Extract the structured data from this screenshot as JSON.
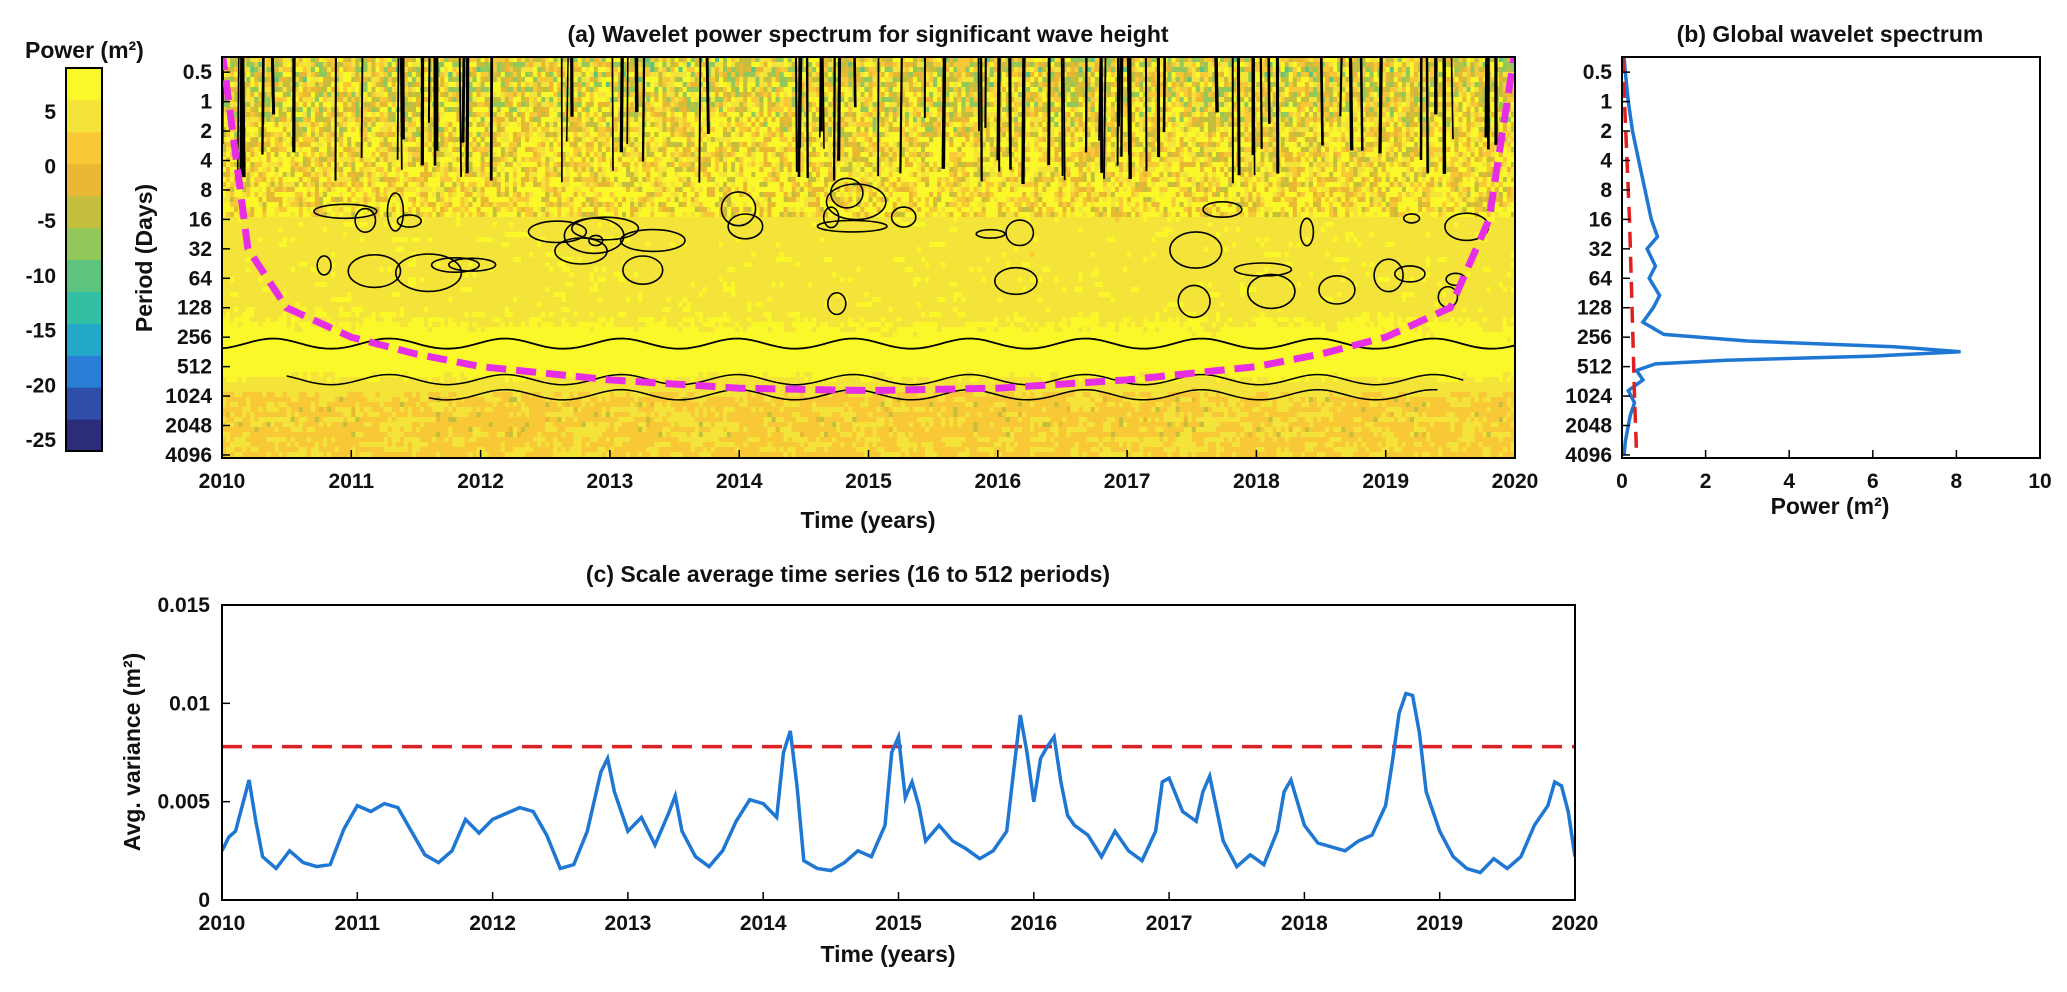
{
  "chart_data": [
    {
      "type": "heatmap",
      "panel": "a",
      "title": "(a) Wavelet power spectrum for significant wave height",
      "xlabel": "Time (years)",
      "ylabel": "Period (Days)",
      "x_ticks": [
        "2010",
        "2011",
        "2012",
        "2013",
        "2014",
        "2015",
        "2016",
        "2017",
        "2018",
        "2019",
        "2020"
      ],
      "xlim": [
        2010,
        2020
      ],
      "y_ticks": [
        "0.5",
        "1",
        "2",
        "4",
        "8",
        "16",
        "32",
        "64",
        "128",
        "256",
        "512",
        "1024",
        "2048",
        "4096"
      ],
      "y_scale": "log2",
      "y_direction": "increasing downward",
      "colorbar": {
        "title": "Power (m²)",
        "ticks": [
          "5",
          "0",
          "-5",
          "-10",
          "-15",
          "-20",
          "-25"
        ],
        "range": [
          -26,
          9
        ],
        "colors": [
          "#2c2c7a",
          "#2f4fa8",
          "#2a7ed6",
          "#22a8c8",
          "#33bfa3",
          "#5cc47e",
          "#92c85a",
          "#c3bf3c",
          "#e8b834",
          "#f9c837",
          "#f4e43a",
          "#fbf82a"
        ]
      },
      "power_by_period": [
        {
          "period": 0.5,
          "power": 0
        },
        {
          "period": 1,
          "power": 1
        },
        {
          "period": 2,
          "power": 3
        },
        {
          "period": 4,
          "power": 4
        },
        {
          "period": 8,
          "power": 5
        },
        {
          "period": 16,
          "power": 5
        },
        {
          "period": 32,
          "power": 5
        },
        {
          "period": 64,
          "power": 5
        },
        {
          "period": 128,
          "power": 5
        },
        {
          "period": 256,
          "power": 7
        },
        {
          "period": 512,
          "power": 8
        },
        {
          "period": 1024,
          "power": 3
        },
        {
          "period": 2048,
          "power": 3
        },
        {
          "period": 4096,
          "power": 3
        }
      ],
      "cone_of_influence": {
        "color": "#e62ee6",
        "x": [
          2010,
          2010.2,
          2010.5,
          2011,
          2011.5,
          2012,
          2013,
          2014,
          2015,
          2016,
          2017,
          2018,
          2018.5,
          2019,
          2019.5,
          2019.8,
          2020
        ],
        "period": [
          0.3,
          32,
          128,
          256,
          380,
          512,
          700,
          850,
          900,
          850,
          700,
          512,
          380,
          256,
          128,
          16,
          0.3
        ]
      },
      "significance_contour_color": "#000000"
    },
    {
      "type": "line",
      "panel": "b",
      "title": "(b) Global wavelet spectrum",
      "xlabel": "Power (m²)",
      "xlim": [
        0,
        10
      ],
      "x_ticks": [
        "0",
        "2",
        "4",
        "6",
        "8",
        "10"
      ],
      "y_ticks": [
        "0.5",
        "1",
        "2",
        "4",
        "8",
        "16",
        "32",
        "64",
        "128",
        "256",
        "512",
        "1024",
        "2048",
        "4096"
      ],
      "y_scale": "log2",
      "series": [
        {
          "color": "#1f77d4",
          "style": "solid",
          "period": [
            0.35,
            0.5,
            1,
            2,
            4,
            8,
            16,
            24,
            32,
            48,
            64,
            96,
            128,
            180,
            240,
            280,
            320,
            360,
            400,
            440,
            480,
            560,
            700,
            900,
            1200,
            1600,
            2048,
            3000,
            4096
          ],
          "power": [
            0.05,
            0.08,
            0.15,
            0.25,
            0.4,
            0.55,
            0.7,
            0.85,
            0.6,
            0.8,
            0.65,
            0.9,
            0.75,
            0.5,
            1.0,
            3.0,
            6.5,
            8.1,
            6.0,
            2.5,
            0.8,
            0.35,
            0.5,
            0.15,
            0.3,
            0.2,
            0.15,
            0.08,
            0.05
          ]
        },
        {
          "color": "#e02020",
          "style": "dashed",
          "period": [
            0.35,
            1,
            4,
            16,
            64,
            256,
            1024,
            4096
          ],
          "power": [
            0.02,
            0.06,
            0.12,
            0.18,
            0.22,
            0.26,
            0.3,
            0.35
          ]
        }
      ]
    },
    {
      "type": "line",
      "panel": "c",
      "title": "(c) Scale average time series (16 to 512 periods)",
      "xlabel": "Time (years)",
      "ylabel": "Avg. variance (m²)",
      "xlim": [
        2010,
        2020
      ],
      "ylim": [
        0,
        0.015
      ],
      "x_ticks": [
        "2010",
        "2011",
        "2012",
        "2013",
        "2014",
        "2015",
        "2016",
        "2017",
        "2018",
        "2019",
        "2020"
      ],
      "y_ticks": [
        "0",
        "0.005",
        "0.01",
        "0.015"
      ],
      "significance_level": {
        "value": 0.0078,
        "color": "#e02020",
        "style": "dashed"
      },
      "series": [
        {
          "color": "#1f77d4",
          "x": [
            2010.0,
            2010.05,
            2010.1,
            2010.15,
            2010.2,
            2010.25,
            2010.3,
            2010.4,
            2010.5,
            2010.6,
            2010.7,
            2010.8,
            2010.9,
            2011.0,
            2011.1,
            2011.2,
            2011.3,
            2011.4,
            2011.5,
            2011.6,
            2011.7,
            2011.8,
            2011.9,
            2012.0,
            2012.1,
            2012.2,
            2012.3,
            2012.4,
            2012.5,
            2012.6,
            2012.7,
            2012.8,
            2012.85,
            2012.9,
            2013.0,
            2013.1,
            2013.2,
            2013.3,
            2013.35,
            2013.4,
            2013.5,
            2013.6,
            2013.7,
            2013.8,
            2013.9,
            2014.0,
            2014.1,
            2014.15,
            2014.2,
            2014.25,
            2014.3,
            2014.4,
            2014.5,
            2014.6,
            2014.7,
            2014.8,
            2014.9,
            2014.95,
            2015.0,
            2015.05,
            2015.1,
            2015.15,
            2015.2,
            2015.3,
            2015.4,
            2015.5,
            2015.6,
            2015.7,
            2015.8,
            2015.85,
            2015.9,
            2015.95,
            2016.0,
            2016.05,
            2016.1,
            2016.15,
            2016.2,
            2016.25,
            2016.3,
            2016.4,
            2016.5,
            2016.6,
            2016.7,
            2016.8,
            2016.9,
            2016.95,
            2017.0,
            2017.1,
            2017.2,
            2017.25,
            2017.3,
            2017.4,
            2017.5,
            2017.6,
            2017.7,
            2017.8,
            2017.85,
            2017.9,
            2018.0,
            2018.1,
            2018.2,
            2018.3,
            2018.4,
            2018.5,
            2018.6,
            2018.65,
            2018.7,
            2018.75,
            2018.8,
            2018.85,
            2018.9,
            2019.0,
            2019.1,
            2019.2,
            2019.3,
            2019.4,
            2019.5,
            2019.6,
            2019.7,
            2019.8,
            2019.85,
            2019.9,
            2019.95,
            2020.0
          ],
          "values": [
            0.0025,
            0.0032,
            0.0035,
            0.0048,
            0.0061,
            0.004,
            0.0022,
            0.0016,
            0.0025,
            0.0019,
            0.0017,
            0.0018,
            0.0036,
            0.0048,
            0.0045,
            0.0049,
            0.0047,
            0.0035,
            0.0023,
            0.0019,
            0.0025,
            0.0041,
            0.0034,
            0.0041,
            0.0044,
            0.0047,
            0.0045,
            0.0033,
            0.0016,
            0.0018,
            0.0035,
            0.0065,
            0.0072,
            0.0055,
            0.0035,
            0.0042,
            0.0028,
            0.0044,
            0.0053,
            0.0035,
            0.0022,
            0.0017,
            0.0025,
            0.004,
            0.0051,
            0.0049,
            0.0042,
            0.0075,
            0.0086,
            0.0058,
            0.002,
            0.0016,
            0.0015,
            0.0019,
            0.0025,
            0.0022,
            0.0038,
            0.0075,
            0.0083,
            0.0052,
            0.006,
            0.0048,
            0.003,
            0.0038,
            0.003,
            0.0026,
            0.0021,
            0.0025,
            0.0035,
            0.0065,
            0.0094,
            0.0075,
            0.005,
            0.0072,
            0.0078,
            0.0083,
            0.006,
            0.0043,
            0.0038,
            0.0033,
            0.0022,
            0.0035,
            0.0025,
            0.002,
            0.0035,
            0.006,
            0.0062,
            0.0045,
            0.004,
            0.0055,
            0.0063,
            0.003,
            0.0017,
            0.0023,
            0.0018,
            0.0035,
            0.0055,
            0.0061,
            0.0038,
            0.0029,
            0.0027,
            0.0025,
            0.003,
            0.0033,
            0.0048,
            0.007,
            0.0095,
            0.0105,
            0.0104,
            0.0085,
            0.0055,
            0.0035,
            0.0022,
            0.0016,
            0.0014,
            0.0021,
            0.0016,
            0.0022,
            0.0038,
            0.0048,
            0.006,
            0.0058,
            0.0045,
            0.0022
          ]
        }
      ]
    }
  ]
}
